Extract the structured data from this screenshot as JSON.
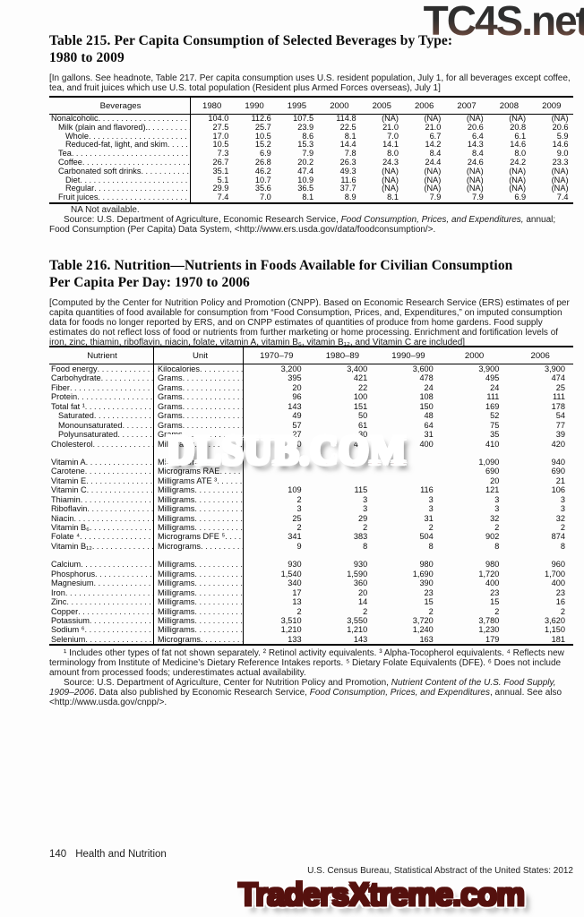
{
  "watermarks": {
    "top": "TC4S.net",
    "middle": "DLSUB.COM",
    "bottom": "TradersXtreme.com",
    "colors": {
      "top_dark": "#2e2e2e",
      "middle_red": "#b71414",
      "bottom_salmon": "#cd5a55"
    }
  },
  "table215": {
    "title_line1": "Table 215. Per Capita Consumption of Selected Beverages by Type:",
    "title_line2": "1980 to 2009",
    "headnote": "[In gallons. See headnote, Table 217. Per capita consumption uses U.S. resident population, July 1, for all beverages except coffee, tea, and fruit juices which use U.S. total population (Resident plus Armed Forces overseas), July 1]",
    "columns": [
      "Beverages",
      "1980",
      "1990",
      "1995",
      "2000",
      "2005",
      "2006",
      "2007",
      "2008",
      "2009"
    ],
    "rows": [
      {
        "label": "Nonalcoholic",
        "indent": 0,
        "values": [
          "104.0",
          "112.6",
          "107.5",
          "114.8",
          "(NA)",
          "(NA)",
          "(NA)",
          "(NA)",
          "(NA)"
        ]
      },
      {
        "label": "Milk (plain and flavored).",
        "indent": 1,
        "values": [
          "27.5",
          "25.7",
          "23.9",
          "22.5",
          "21.0",
          "21.0",
          "20.6",
          "20.8",
          "20.6"
        ]
      },
      {
        "label": "Whole",
        "indent": 2,
        "values": [
          "17.0",
          "10.5",
          "8.6",
          "8.1",
          "7.0",
          "6.7",
          "6.4",
          "6.1",
          "5.9"
        ]
      },
      {
        "label": "Reduced-fat, light, and skim",
        "indent": 2,
        "values": [
          "10.5",
          "15.2",
          "15.3",
          "14.4",
          "14.1",
          "14.2",
          "14.3",
          "14.6",
          "14.6"
        ]
      },
      {
        "label": "Tea",
        "indent": 1,
        "values": [
          "7.3",
          "6.9",
          "7.9",
          "7.8",
          "8.0",
          "8.4",
          "8.4",
          "8.0",
          "9.0"
        ]
      },
      {
        "label": "Coffee",
        "indent": 1,
        "values": [
          "26.7",
          "26.8",
          "20.2",
          "26.3",
          "24.3",
          "24.4",
          "24.6",
          "24.2",
          "23.3"
        ]
      },
      {
        "label": "Carbonated soft drinks",
        "indent": 1,
        "values": [
          "35.1",
          "46.2",
          "47.4",
          "49.3",
          "(NA)",
          "(NA)",
          "(NA)",
          "(NA)",
          "(NA)"
        ]
      },
      {
        "label": "Diet",
        "indent": 2,
        "values": [
          "5.1",
          "10.7",
          "10.9",
          "11.6",
          "(NA)",
          "(NA)",
          "(NA)",
          "(NA)",
          "(NA)"
        ]
      },
      {
        "label": "Regular",
        "indent": 2,
        "values": [
          "29.9",
          "35.6",
          "36.5",
          "37.7",
          "(NA)",
          "(NA)",
          "(NA)",
          "(NA)",
          "(NA)"
        ]
      },
      {
        "label": "Fruit juices",
        "indent": 1,
        "values": [
          "7.4",
          "7.0",
          "8.1",
          "8.9",
          "8.1",
          "7.9",
          "7.9",
          "6.9",
          "7.4"
        ]
      }
    ],
    "na_note": "NA Not available.",
    "source_parts": [
      {
        "t": "Source: U.S. Department of Agriculture, Economic Research Service, ",
        "i": false
      },
      {
        "t": "Food Consumption, Prices, and Expenditures,",
        "i": true
      },
      {
        "t": " annual; Food Consumption (Per Capita) Data System, <http://www.ers.usda.gov/data/foodconsumption/>.",
        "i": false
      }
    ]
  },
  "table216": {
    "title_line1": "Table 216. Nutrition—Nutrients in Foods Available for Civilian Consumption",
    "title_line2": "Per Capita Per Day: 1970 to 2006",
    "headnote": "[Computed by the Center for Nutrition Policy and Promotion (CNPP). Based on Economic Research Service (ERS) estimates of per capita quantities of food available for consumption from “Food Consumption, Prices, and, Expenditures,” on imputed consumption data for foods no longer reported by ERS, and on CNPP estimates of quantities of produce from home gardens. Food supply estimates do not reflect loss of food or nutrients from further marketing or home processing. Enrichment and fortification levels of iron, zinc, thiamin, riboflavin, niacin, folate, vitamin A, vitamin B₆, vitamin B₁₂, and Vitamin C are included]",
    "columns": [
      "Nutrient",
      "Unit",
      "1970–79",
      "1980–89",
      "1990–99",
      "2000",
      "2006"
    ],
    "rows": [
      {
        "label": "Food energy",
        "unit": "Kilocalories",
        "indent": 0,
        "values": [
          "3,200",
          "3,400",
          "3,600",
          "3,900",
          "3,900"
        ]
      },
      {
        "label": "Carbohydrate",
        "unit": "Grams",
        "indent": 0,
        "values": [
          "395",
          "421",
          "478",
          "495",
          "474"
        ]
      },
      {
        "label": "Fiber",
        "unit": "Grams",
        "indent": 0,
        "values": [
          "20",
          "22",
          "24",
          "24",
          "25"
        ]
      },
      {
        "label": "Protein",
        "unit": "Grams",
        "indent": 0,
        "values": [
          "96",
          "100",
          "108",
          "111",
          "111"
        ]
      },
      {
        "label": "Total fat ¹",
        "unit": "Grams",
        "indent": 0,
        "values": [
          "143",
          "151",
          "150",
          "169",
          "178"
        ]
      },
      {
        "label": "Saturated",
        "unit": "Grams",
        "indent": 1,
        "values": [
          "49",
          "50",
          "48",
          "52",
          "54"
        ]
      },
      {
        "label": "Monounsaturated",
        "unit": "Grams",
        "indent": 1,
        "values": [
          "57",
          "61",
          "64",
          "75",
          "77"
        ]
      },
      {
        "label": "Polyunsaturated",
        "unit": "Grams",
        "indent": 1,
        "values": [
          "27",
          "30",
          "31",
          "35",
          "39"
        ]
      },
      {
        "label": "Cholesterol",
        "unit": "Milligrams",
        "indent": 0,
        "values": [
          "430",
          "420",
          "400",
          "410",
          "420"
        ]
      },
      {
        "spacer": true
      },
      {
        "label": "Vitamin A",
        "unit": "Micrograms RAE ²",
        "indent": 0,
        "values": [
          "",
          "",
          "",
          "1,090",
          "940"
        ]
      },
      {
        "label": "Carotene",
        "unit": "Micrograms RAE",
        "indent": 0,
        "values": [
          "",
          "",
          "",
          "690",
          "690"
        ]
      },
      {
        "label": "Vitamin E",
        "unit": "Milligrams ATE ³",
        "indent": 0,
        "values": [
          "",
          "",
          "",
          "20",
          "21"
        ]
      },
      {
        "label": "Vitamin C",
        "unit": "Milligrams",
        "indent": 0,
        "values": [
          "109",
          "115",
          "116",
          "121",
          "106"
        ]
      },
      {
        "label": "Thiamin",
        "unit": "Milligrams",
        "indent": 0,
        "values": [
          "2",
          "3",
          "3",
          "3",
          "3"
        ]
      },
      {
        "label": "Riboflavin",
        "unit": "Milligrams",
        "indent": 0,
        "values": [
          "3",
          "3",
          "3",
          "3",
          "3"
        ]
      },
      {
        "label": "Niacin",
        "unit": "Milligrams",
        "indent": 0,
        "values": [
          "25",
          "29",
          "31",
          "32",
          "32"
        ]
      },
      {
        "label": "Vitamin B₆",
        "unit": "Milligrams",
        "indent": 0,
        "values": [
          "2",
          "2",
          "2",
          "2",
          "2"
        ]
      },
      {
        "label": "Folate ⁴",
        "unit": "Micrograms DFE ⁵",
        "indent": 0,
        "values": [
          "341",
          "383",
          "504",
          "902",
          "874"
        ]
      },
      {
        "label": "Vitamin B₁₂",
        "unit": "Micrograms",
        "indent": 0,
        "values": [
          "9",
          "8",
          "8",
          "8",
          "8"
        ]
      },
      {
        "spacer": true
      },
      {
        "label": "Calcium",
        "unit": "Milligrams",
        "indent": 0,
        "values": [
          "930",
          "930",
          "980",
          "980",
          "960"
        ]
      },
      {
        "label": "Phosphorus",
        "unit": "Milligrams",
        "indent": 0,
        "values": [
          "1,540",
          "1,590",
          "1,690",
          "1,720",
          "1,700"
        ]
      },
      {
        "label": "Magnesium",
        "unit": "Milligrams",
        "indent": 0,
        "values": [
          "340",
          "360",
          "390",
          "400",
          "400"
        ]
      },
      {
        "label": "Iron",
        "unit": "Milligrams",
        "indent": 0,
        "values": [
          "17",
          "20",
          "23",
          "23",
          "23"
        ]
      },
      {
        "label": "Zinc",
        "unit": "Milligrams",
        "indent": 0,
        "values": [
          "13",
          "14",
          "15",
          "15",
          "16"
        ]
      },
      {
        "label": "Copper",
        "unit": "Milligrams",
        "indent": 0,
        "values": [
          "2",
          "2",
          "2",
          "2",
          "2"
        ]
      },
      {
        "label": "Potassium",
        "unit": "Milligrams",
        "indent": 0,
        "values": [
          "3,510",
          "3,550",
          "3,720",
          "3,780",
          "3,620"
        ]
      },
      {
        "label": "Sodium ⁶",
        "unit": "Milligrams",
        "indent": 0,
        "values": [
          "1,210",
          "1,210",
          "1,240",
          "1,230",
          "1,150"
        ]
      },
      {
        "label": "Selenium",
        "unit": "Micrograms",
        "indent": 0,
        "values": [
          "133",
          "143",
          "163",
          "179",
          "181"
        ]
      }
    ],
    "footnotes": "¹ Includes other types of fat not shown separately. ² Retinol activity equivalents. ³ Alpha-Tocopherol equivalents. ⁴ Reflects new terminology from Institute of Medicine’s Dietary Reference Intakes reports. ⁵ Dietary Folate Equivalents (DFE). ⁶ Does not include amount from processed foods; underestimates actual availability.",
    "source_parts": [
      {
        "t": "Source: U.S. Department of Agriculture, Center for Nutrition Policy and Promotion, ",
        "i": false
      },
      {
        "t": "Nutrient Content of the U.S. Food Supply, 1909–2006",
        "i": true
      },
      {
        "t": ". Data also published by Economic Research Service, ",
        "i": false
      },
      {
        "t": "Food Consumption, Prices, and Expenditures",
        "i": true
      },
      {
        "t": ", annual. See also <http://www.usda.gov/cnpp/>.",
        "i": false
      }
    ]
  },
  "footer": {
    "page": "140",
    "section": "Health and Nutrition",
    "source_line": "U.S. Census Bureau, Statistical Abstract of the United States: 2012"
  }
}
